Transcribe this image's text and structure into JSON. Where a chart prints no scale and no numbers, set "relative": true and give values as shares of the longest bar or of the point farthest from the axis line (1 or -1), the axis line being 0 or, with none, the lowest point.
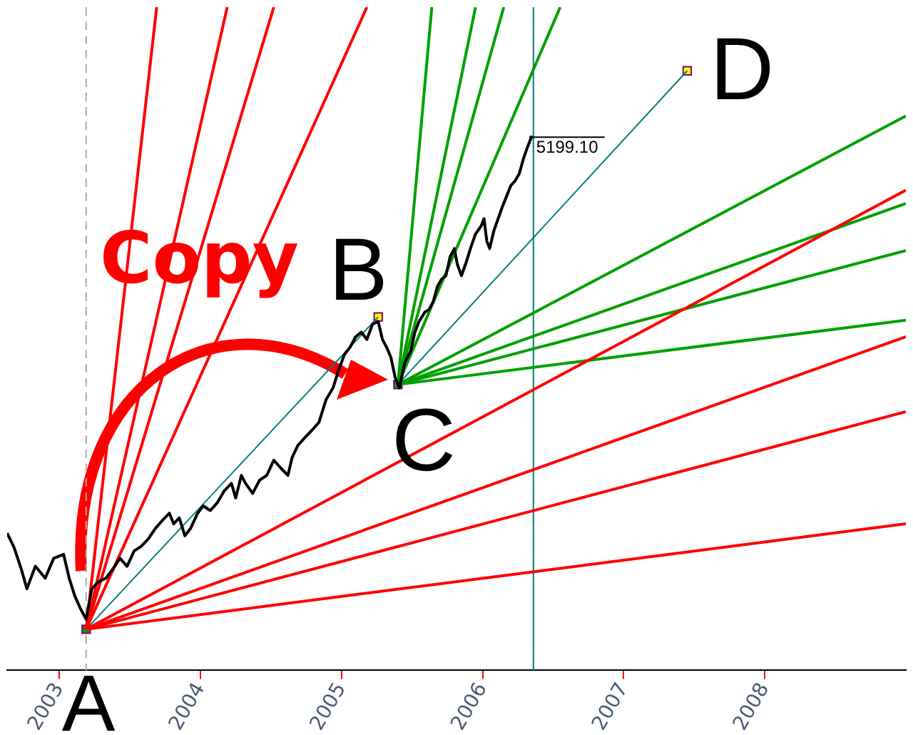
{
  "chart_data": {
    "type": "line",
    "relative": true,
    "xlim": [
      2002.63,
      2009.0
    ],
    "xticks": [
      2003,
      2004,
      2005,
      2006,
      2007,
      2008
    ],
    "tick_labels": "x",
    "grid": false,
    "legend": false,
    "series": [
      {
        "type": "line",
        "color": "#000000",
        "x": [
          2002.63,
          2002.68,
          2002.73,
          2002.77,
          2002.83,
          2002.9,
          2002.96,
          2003.03,
          2003.07,
          2003.11,
          2003.15,
          2003.19,
          2003.23,
          2003.28,
          2003.33,
          2003.38,
          2003.43,
          2003.48,
          2003.53,
          2003.58,
          2003.63,
          2003.68,
          2003.73,
          2003.78,
          2003.81,
          2003.85,
          2003.89,
          2003.93,
          2003.98,
          2004.02,
          2004.07,
          2004.12,
          2004.17,
          2004.22,
          2004.25,
          2004.29,
          2004.32,
          2004.37,
          2004.42,
          2004.47,
          2004.52,
          2004.57,
          2004.62,
          2004.65,
          2004.69,
          2004.74,
          2004.79,
          2004.84,
          2004.89,
          2004.94,
          2004.98,
          2005.02,
          2005.06,
          2005.1,
          2005.14,
          2005.18,
          2005.22,
          2005.26,
          2005.29,
          2005.32,
          2005.35,
          2005.38,
          2005.41,
          2005.45,
          2005.49,
          2005.52,
          2005.55,
          2005.59,
          2005.62,
          2005.65,
          2005.68,
          2005.71,
          2005.74,
          2005.77,
          2005.8,
          2005.82,
          2005.85,
          2005.88,
          2005.92,
          2005.95,
          2005.99,
          2006.01,
          2006.03,
          2006.05,
          2006.08,
          2006.11,
          2006.14,
          2006.17,
          2006.2,
          2006.23,
          2006.26,
          2006.29,
          2006.32,
          2006.35
        ],
        "values": [
          0.207,
          0.185,
          0.153,
          0.123,
          0.157,
          0.139,
          0.169,
          0.175,
          0.139,
          0.112,
          0.093,
          0.077,
          0.123,
          0.134,
          0.139,
          0.153,
          0.169,
          0.157,
          0.18,
          0.187,
          0.198,
          0.214,
          0.226,
          0.237,
          0.221,
          0.23,
          0.203,
          0.214,
          0.237,
          0.248,
          0.241,
          0.253,
          0.271,
          0.282,
          0.26,
          0.294,
          0.282,
          0.267,
          0.287,
          0.294,
          0.317,
          0.305,
          0.294,
          0.321,
          0.339,
          0.351,
          0.362,
          0.374,
          0.408,
          0.426,
          0.453,
          0.476,
          0.487,
          0.503,
          0.51,
          0.499,
          0.522,
          0.526,
          0.499,
          0.487,
          0.472,
          0.442,
          0.426,
          0.465,
          0.481,
          0.51,
          0.526,
          0.54,
          0.544,
          0.556,
          0.579,
          0.59,
          0.595,
          0.624,
          0.636,
          0.613,
          0.595,
          0.613,
          0.64,
          0.658,
          0.67,
          0.681,
          0.647,
          0.636,
          0.663,
          0.681,
          0.699,
          0.715,
          0.731,
          0.738,
          0.749,
          0.772,
          0.79,
          0.806
        ]
      },
      {
        "type": "line",
        "color": "#ff0000",
        "x": [
          2003.19,
          2003.69
        ],
        "values": [
          0.062,
          1
        ]
      },
      {
        "type": "line",
        "color": "#ff0000",
        "x": [
          2003.19,
          2004.19
        ],
        "values": [
          0.062,
          1
        ]
      },
      {
        "type": "line",
        "color": "#ff0000",
        "x": [
          2003.19,
          2004.52
        ],
        "values": [
          0.062,
          1
        ]
      },
      {
        "type": "line",
        "color": "#ff0000",
        "x": [
          2003.19,
          2005.18
        ],
        "values": [
          0.062,
          1
        ]
      },
      {
        "type": "line",
        "color": "#ff0000",
        "x": [
          2003.19,
          2009.0
        ],
        "values": [
          0.062,
          0.724
        ]
      },
      {
        "type": "line",
        "color": "#ff0000",
        "x": [
          2003.19,
          2009.0
        ],
        "values": [
          0.062,
          0.503
        ]
      },
      {
        "type": "line",
        "color": "#ff0000",
        "x": [
          2003.19,
          2009.0
        ],
        "values": [
          0.062,
          0.39
        ]
      },
      {
        "type": "line",
        "color": "#ff0000",
        "x": [
          2003.19,
          2009.0
        ],
        "values": [
          0.062,
          0.221
        ]
      },
      {
        "type": "line",
        "color": "#00a000",
        "x": [
          2005.4,
          2005.64
        ],
        "values": [
          0.431,
          1
        ]
      },
      {
        "type": "line",
        "color": "#00a000",
        "x": [
          2005.4,
          2005.95
        ],
        "values": [
          0.431,
          1
        ]
      },
      {
        "type": "line",
        "color": "#00a000",
        "x": [
          2005.4,
          2006.15
        ],
        "values": [
          0.431,
          1
        ]
      },
      {
        "type": "line",
        "color": "#00a000",
        "x": [
          2005.4,
          2006.55
        ],
        "values": [
          0.431,
          1
        ]
      },
      {
        "type": "line",
        "color": "#00a000",
        "x": [
          2005.4,
          2009.0
        ],
        "values": [
          0.431,
          0.836
        ]
      },
      {
        "type": "line",
        "color": "#00a000",
        "x": [
          2005.4,
          2009.0
        ],
        "values": [
          0.431,
          0.704
        ]
      },
      {
        "type": "line",
        "color": "#00a000",
        "x": [
          2005.4,
          2009.0
        ],
        "values": [
          0.431,
          0.633
        ]
      },
      {
        "type": "line",
        "color": "#00a000",
        "x": [
          2005.4,
          2009.0
        ],
        "values": [
          0.431,
          0.528
        ]
      },
      {
        "type": "line",
        "color": "#008080",
        "x": [
          2003.19,
          2005.26
        ],
        "values": [
          0.062,
          0.533
        ]
      },
      {
        "type": "line",
        "color": "#008080",
        "x": [
          2005.4,
          2007.45
        ],
        "values": [
          0.431,
          0.904
        ]
      },
      {
        "type": "scatter",
        "marker": "square",
        "x": [
          2003.19,
          2005.26,
          2005.4,
          2007.45
        ],
        "values": [
          0.062,
          0.533,
          0.431,
          0.904
        ],
        "colors": [
          "#00a000",
          "#ffff00",
          "#00a000",
          "#ffff00"
        ]
      }
    ],
    "ref_lines": [
      {
        "axis": "x",
        "value": 2003.19,
        "color": "#aaaaaa",
        "line_style": "dashed"
      },
      {
        "axis": "x",
        "value": 2006.36,
        "color": "#008080",
        "line_style": "solid"
      }
    ],
    "annotations": [
      "A",
      {
        "text": "B",
        "x": 2005.26,
        "y": 0.533
      },
      {
        "text": "C",
        "x": 2005.4,
        "y": 0.431
      },
      {
        "text": "D",
        "x": 2007.45,
        "y": 0.904
      },
      "Copy",
      {
        "text": "5199.10",
        "x": 2006.36,
        "y": 0.806
      }
    ]
  }
}
